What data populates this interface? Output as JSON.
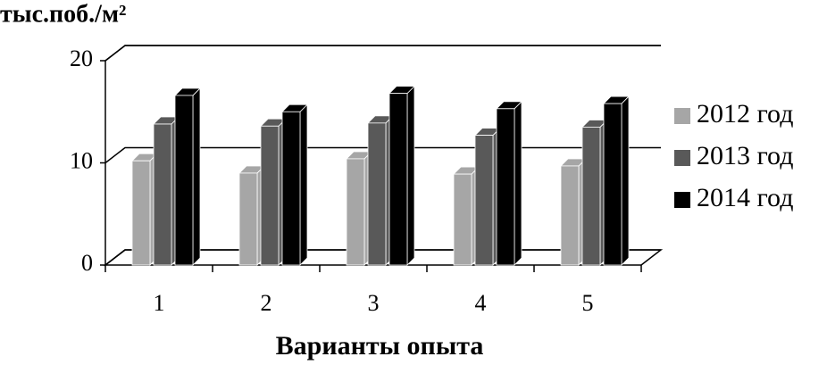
{
  "chart_data": {
    "type": "bar3d",
    "y_label": "тыс.поб./м²",
    "x_label": "Варианты опыта",
    "categories": [
      "1",
      "2",
      "3",
      "4",
      "5"
    ],
    "series": [
      {
        "name": "2012 год",
        "color": "#a6a6a6",
        "values": [
          10.2,
          9.0,
          10.4,
          8.9,
          9.7
        ]
      },
      {
        "name": "2013 год",
        "color": "#595959",
        "values": [
          13.8,
          13.6,
          13.9,
          12.7,
          13.5
        ]
      },
      {
        "name": "2014 год",
        "color": "#000000",
        "values": [
          16.6,
          15.0,
          16.8,
          15.3,
          15.8
        ]
      }
    ],
    "ylim": [
      0,
      20
    ],
    "yticks": [
      0,
      10,
      20
    ],
    "grid": true,
    "legend": "right"
  }
}
